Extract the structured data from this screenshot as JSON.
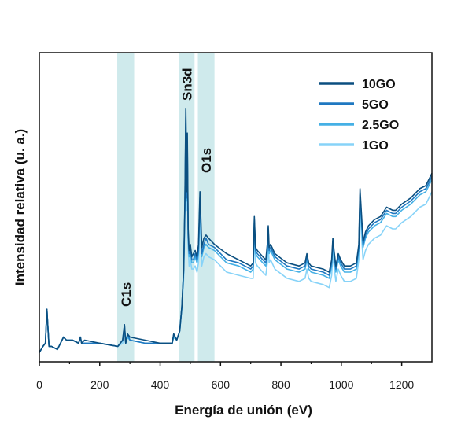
{
  "chart_data": {
    "type": "line",
    "title": "",
    "xlabel": "Energía de unión (eV)",
    "ylabel": "Intensidad relativa (u. a.)",
    "xlim": [
      0,
      1300
    ],
    "ylim": [
      0,
      100
    ],
    "xticks": [
      0,
      200,
      400,
      600,
      800,
      1000,
      1200
    ],
    "yticks_shown": false,
    "grid": false,
    "legend_position": "top-right",
    "highlight_color": "#a8d8dc",
    "bands": [
      {
        "label": "C1s",
        "x_start": 258,
        "x_end": 314
      },
      {
        "label": "Sn3d",
        "x_start": 462,
        "x_end": 514
      },
      {
        "label": "O1s",
        "x_start": 525,
        "x_end": 580
      }
    ],
    "series": [
      {
        "name": "10GO",
        "color": "#0b4f80",
        "x": [
          0,
          12,
          20,
          25,
          28,
          32,
          40,
          60,
          80,
          90,
          110,
          130,
          136,
          140,
          150,
          200,
          260,
          276,
          282,
          286,
          292,
          300,
          350,
          400,
          430,
          440,
          445,
          455,
          465,
          472,
          478,
          482,
          485,
          488,
          490,
          493,
          496,
          500,
          505,
          510,
          516,
          522,
          527,
          532,
          538,
          545,
          552,
          560,
          580,
          620,
          660,
          700,
          708,
          712,
          716,
          722,
          740,
          750,
          755,
          758,
          761,
          766,
          780,
          820,
          860,
          880,
          886,
          892,
          900,
          940,
          960,
          968,
          972,
          976,
          982,
          990,
          998,
          1010,
          1030,
          1050,
          1058,
          1062,
          1066,
          1072,
          1080,
          1090,
          1110,
          1130,
          1150,
          1170,
          1180,
          1200,
          1230,
          1260,
          1280,
          1290,
          1300
        ],
        "y": [
          3,
          5,
          6,
          17,
          12,
          5,
          5,
          4,
          8,
          7,
          7,
          6,
          8,
          6,
          7,
          6,
          5,
          7,
          12,
          6,
          9,
          8,
          7,
          6,
          6,
          6,
          9,
          7,
          10,
          18,
          30,
          52,
          82,
          55,
          74,
          43,
          36,
          38,
          34,
          35,
          36,
          34,
          38,
          55,
          37,
          40,
          41,
          40,
          38,
          35,
          33,
          31,
          32,
          47,
          37,
          36,
          34,
          33,
          38,
          44,
          37,
          38,
          35,
          32,
          31,
          32,
          35,
          32,
          31,
          30,
          29,
          33,
          40,
          36,
          31,
          35,
          33,
          31,
          31,
          32,
          38,
          56,
          49,
          39,
          42,
          44,
          46,
          47,
          50,
          49,
          49,
          51,
          53,
          56,
          57,
          59,
          61
        ]
      },
      {
        "name": "5GO",
        "color": "#1f78c1",
        "x": [
          0,
          12,
          20,
          25,
          28,
          32,
          40,
          60,
          80,
          90,
          110,
          130,
          136,
          140,
          150,
          200,
          260,
          276,
          282,
          286,
          292,
          300,
          350,
          400,
          430,
          440,
          445,
          455,
          465,
          472,
          478,
          482,
          485,
          488,
          490,
          493,
          496,
          500,
          505,
          510,
          516,
          522,
          527,
          532,
          538,
          545,
          552,
          560,
          580,
          620,
          660,
          700,
          708,
          712,
          716,
          722,
          740,
          750,
          755,
          758,
          761,
          766,
          780,
          820,
          860,
          880,
          886,
          892,
          900,
          940,
          960,
          968,
          972,
          976,
          982,
          990,
          998,
          1010,
          1030,
          1050,
          1058,
          1062,
          1066,
          1072,
          1080,
          1090,
          1110,
          1130,
          1150,
          1170,
          1180,
          1200,
          1230,
          1260,
          1280,
          1290,
          1300
        ],
        "y": [
          3,
          5,
          6,
          17,
          12,
          5,
          5,
          4,
          8,
          7,
          7,
          6,
          8,
          6,
          6,
          6,
          5,
          7,
          12,
          6,
          9,
          7,
          6,
          6,
          6,
          6,
          9,
          7,
          10,
          18,
          30,
          50,
          79,
          53,
          71,
          41,
          35,
          37,
          33,
          33,
          35,
          33,
          36,
          53,
          35,
          38,
          40,
          38,
          37,
          33,
          32,
          30,
          31,
          46,
          36,
          35,
          33,
          32,
          36,
          43,
          36,
          37,
          34,
          31,
          30,
          31,
          34,
          31,
          30,
          29,
          28,
          32,
          39,
          35,
          30,
          34,
          32,
          30,
          30,
          31,
          37,
          54,
          47,
          38,
          41,
          43,
          45,
          46,
          49,
          48,
          48,
          50,
          52,
          55,
          56,
          58,
          60
        ]
      },
      {
        "name": "2.5GO",
        "color": "#45b0e5",
        "x": [
          0,
          12,
          20,
          25,
          28,
          32,
          40,
          60,
          80,
          90,
          110,
          130,
          136,
          140,
          150,
          200,
          260,
          276,
          282,
          286,
          292,
          300,
          350,
          400,
          430,
          440,
          445,
          455,
          465,
          472,
          478,
          482,
          485,
          488,
          490,
          493,
          496,
          500,
          505,
          510,
          516,
          522,
          527,
          532,
          538,
          545,
          552,
          560,
          580,
          620,
          660,
          700,
          708,
          712,
          716,
          722,
          740,
          750,
          755,
          758,
          761,
          766,
          780,
          820,
          860,
          880,
          886,
          892,
          900,
          940,
          960,
          968,
          972,
          976,
          982,
          990,
          998,
          1010,
          1030,
          1050,
          1058,
          1062,
          1066,
          1072,
          1080,
          1090,
          1110,
          1130,
          1150,
          1170,
          1180,
          1200,
          1230,
          1260,
          1280,
          1290,
          1300
        ],
        "y": [
          3,
          5,
          6,
          17,
          12,
          5,
          5,
          4,
          8,
          7,
          7,
          6,
          8,
          6,
          6,
          6,
          5,
          7,
          11,
          6,
          8,
          7,
          6,
          6,
          6,
          6,
          8,
          7,
          10,
          18,
          29,
          49,
          77,
          52,
          69,
          40,
          34,
          36,
          32,
          32,
          34,
          32,
          35,
          52,
          34,
          37,
          38,
          37,
          36,
          32,
          31,
          29,
          30,
          45,
          35,
          34,
          32,
          31,
          35,
          42,
          35,
          36,
          33,
          30,
          29,
          30,
          33,
          30,
          29,
          28,
          27,
          31,
          38,
          34,
          29,
          33,
          31,
          29,
          29,
          30,
          36,
          53,
          46,
          37,
          40,
          42,
          44,
          45,
          48,
          47,
          47,
          49,
          51,
          54,
          55,
          57,
          59
        ]
      },
      {
        "name": "1GO",
        "color": "#87d3f8",
        "x": [
          0,
          12,
          20,
          25,
          28,
          32,
          40,
          60,
          80,
          90,
          110,
          130,
          136,
          140,
          150,
          200,
          260,
          276,
          282,
          286,
          292,
          300,
          350,
          400,
          430,
          440,
          445,
          455,
          465,
          472,
          478,
          482,
          485,
          488,
          490,
          493,
          496,
          500,
          505,
          510,
          516,
          522,
          527,
          532,
          538,
          545,
          552,
          560,
          580,
          620,
          660,
          700,
          708,
          712,
          716,
          722,
          740,
          750,
          755,
          758,
          761,
          766,
          780,
          820,
          860,
          880,
          886,
          892,
          900,
          940,
          960,
          968,
          972,
          976,
          982,
          990,
          998,
          1010,
          1030,
          1050,
          1058,
          1062,
          1066,
          1072,
          1080,
          1090,
          1110,
          1130,
          1150,
          1170,
          1180,
          1200,
          1230,
          1260,
          1280,
          1290,
          1300
        ],
        "y": [
          3,
          5,
          6,
          17,
          12,
          5,
          5,
          4,
          8,
          7,
          7,
          6,
          8,
          6,
          6,
          6,
          5,
          6,
          10,
          6,
          8,
          7,
          6,
          6,
          6,
          6,
          8,
          7,
          10,
          17,
          27,
          46,
          72,
          49,
          64,
          37,
          31,
          33,
          30,
          30,
          31,
          29,
          32,
          48,
          31,
          34,
          35,
          34,
          33,
          29,
          28,
          27,
          27,
          41,
          32,
          31,
          29,
          28,
          32,
          38,
          32,
          33,
          30,
          27,
          26,
          27,
          30,
          27,
          26,
          25,
          24,
          28,
          35,
          31,
          26,
          30,
          28,
          26,
          26,
          27,
          33,
          49,
          42,
          33,
          36,
          38,
          40,
          41,
          44,
          43,
          43,
          45,
          47,
          50,
          51,
          53,
          55
        ]
      }
    ]
  }
}
